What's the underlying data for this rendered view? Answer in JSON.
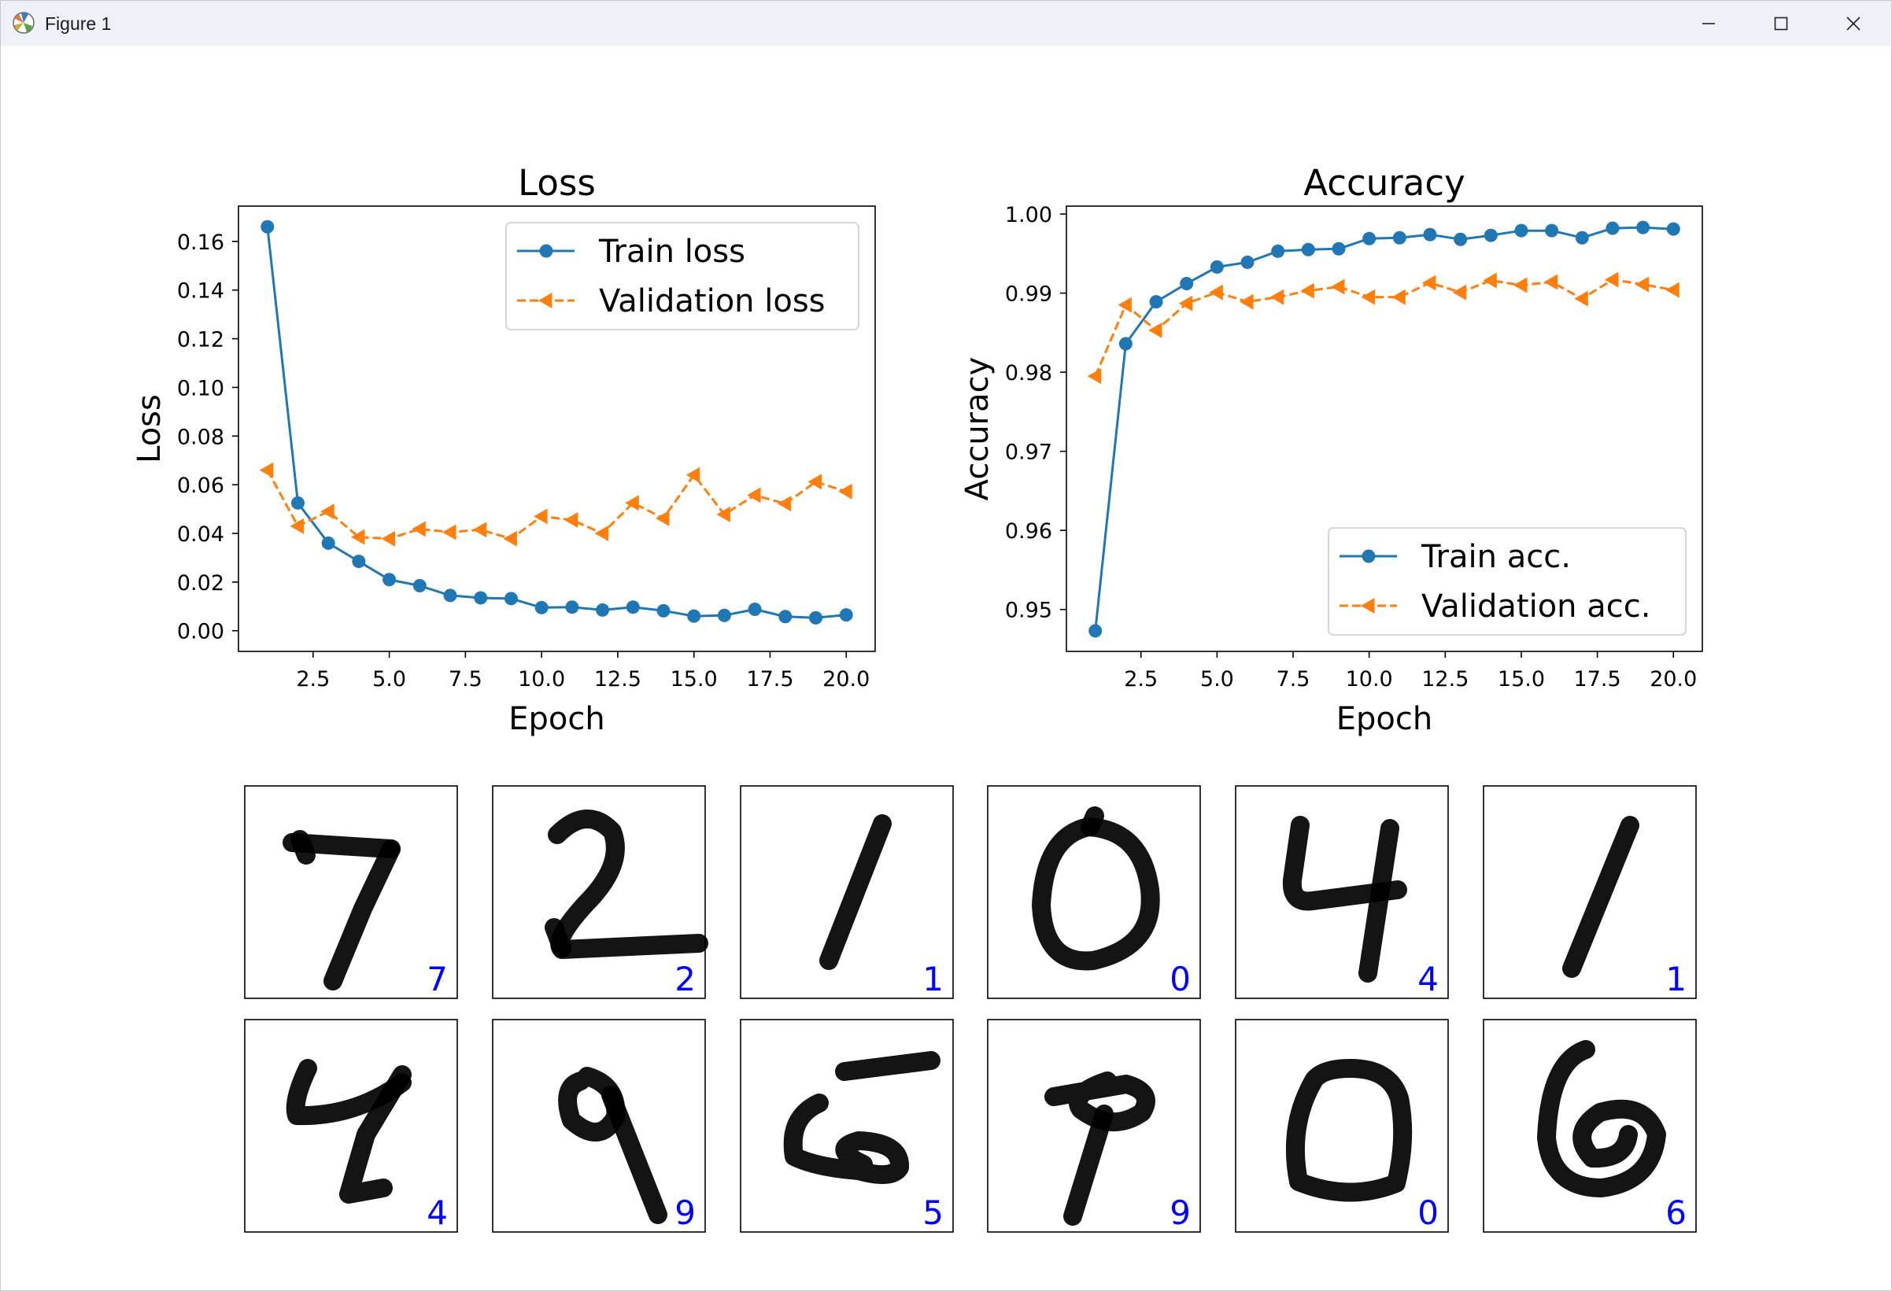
{
  "window": {
    "title": "Figure 1",
    "icons": {
      "app": "matplotlib-icon",
      "minimize": "minimize-icon",
      "maximize": "maximize-icon",
      "close": "close-icon"
    }
  },
  "colors": {
    "train": "#1f77b4",
    "validation": "#ff7f0e",
    "digit_label": "#0000ff"
  },
  "chart_data": [
    {
      "type": "line",
      "title": "Loss",
      "xlabel": "Epoch",
      "ylabel": "Loss",
      "xlim": [
        0.05,
        20.95
      ],
      "ylim": [
        -0.0085,
        0.1745
      ],
      "xticks": [
        2.5,
        5.0,
        7.5,
        10.0,
        12.5,
        15.0,
        17.5,
        20.0
      ],
      "xtick_labels": [
        "2.5",
        "5.0",
        "7.5",
        "10.0",
        "12.5",
        "15.0",
        "17.5",
        "20.0"
      ],
      "yticks": [
        0.0,
        0.02,
        0.04,
        0.06,
        0.08,
        0.1,
        0.12,
        0.14,
        0.16
      ],
      "ytick_labels": [
        "0.00",
        "0.02",
        "0.04",
        "0.06",
        "0.08",
        "0.10",
        "0.12",
        "0.14",
        "0.16"
      ],
      "legend": "upper right",
      "grid": false,
      "x": [
        1,
        2,
        3,
        4,
        5,
        6,
        7,
        8,
        9,
        10,
        11,
        12,
        13,
        14,
        15,
        16,
        17,
        18,
        19,
        20
      ],
      "series": [
        {
          "name": "Train loss",
          "marker": "o",
          "linestyle": "solid",
          "color": "#1f77b4",
          "values": [
            0.166,
            0.0525,
            0.036,
            0.0285,
            0.021,
            0.0185,
            0.0145,
            0.0135,
            0.0132,
            0.0095,
            0.0097,
            0.0085,
            0.0097,
            0.0082,
            0.006,
            0.0063,
            0.0088,
            0.0058,
            0.0053,
            0.0065
          ]
        },
        {
          "name": "Validation loss",
          "marker": "<",
          "linestyle": "dashed",
          "color": "#ff7f0e",
          "values": [
            0.066,
            0.043,
            0.049,
            0.0385,
            0.0378,
            0.0418,
            0.0405,
            0.0415,
            0.0378,
            0.047,
            0.0455,
            0.04,
            0.0525,
            0.0462,
            0.064,
            0.0478,
            0.0557,
            0.0522,
            0.0612,
            0.0572
          ]
        }
      ]
    },
    {
      "type": "line",
      "title": "Accuracy",
      "xlabel": "Epoch",
      "ylabel": "Accuracy",
      "xlim": [
        0.05,
        20.95
      ],
      "ylim": [
        0.9447,
        1.001
      ],
      "xticks": [
        2.5,
        5.0,
        7.5,
        10.0,
        12.5,
        15.0,
        17.5,
        20.0
      ],
      "xtick_labels": [
        "2.5",
        "5.0",
        "7.5",
        "10.0",
        "12.5",
        "15.0",
        "17.5",
        "20.0"
      ],
      "yticks": [
        0.95,
        0.96,
        0.97,
        0.98,
        0.99,
        1.0
      ],
      "ytick_labels": [
        "0.95",
        "0.96",
        "0.97",
        "0.98",
        "0.99",
        "1.00"
      ],
      "legend": "lower right",
      "grid": false,
      "x": [
        1,
        2,
        3,
        4,
        5,
        6,
        7,
        8,
        9,
        10,
        11,
        12,
        13,
        14,
        15,
        16,
        17,
        18,
        19,
        20
      ],
      "series": [
        {
          "name": "Train acc.",
          "marker": "o",
          "linestyle": "solid",
          "color": "#1f77b4",
          "values": [
            0.9473,
            0.9836,
            0.9889,
            0.9912,
            0.9933,
            0.9939,
            0.9953,
            0.9955,
            0.9956,
            0.9969,
            0.997,
            0.9974,
            0.9968,
            0.9973,
            0.9979,
            0.9979,
            0.997,
            0.9982,
            0.9983,
            0.9981
          ]
        },
        {
          "name": "Validation acc.",
          "marker": "<",
          "linestyle": "dashed",
          "color": "#ff7f0e",
          "values": [
            0.9795,
            0.9885,
            0.9853,
            0.9887,
            0.9901,
            0.9889,
            0.9895,
            0.9903,
            0.9908,
            0.9895,
            0.9895,
            0.9913,
            0.9901,
            0.9916,
            0.991,
            0.9914,
            0.9893,
            0.9917,
            0.9911,
            0.9904
          ]
        }
      ]
    }
  ],
  "digits": {
    "rows": [
      [
        "7",
        "2",
        "1",
        "0",
        "4",
        "1"
      ],
      [
        "4",
        "9",
        "5",
        "9",
        "0",
        "6"
      ]
    ]
  }
}
